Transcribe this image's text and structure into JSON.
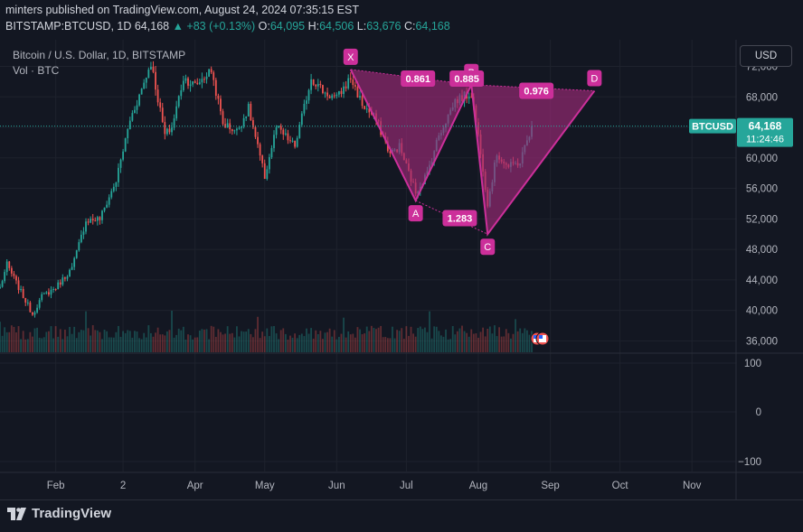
{
  "header": {
    "line1": "minters published on TradingView.com, August 24, 2024 07:35:15 EST",
    "symbol": "BITSTAMP:BTCUSD, 1D",
    "last": "64,168",
    "change": "▲ +83 (+0.13%)",
    "o_label": "O:",
    "o": "64,095",
    "h_label": "H:",
    "h": "64,506",
    "l_label": "L:",
    "l": "63,676",
    "c_label": "C:",
    "c": "64,168"
  },
  "legend": {
    "title": "Bitcoin / U.S. Dollar, 1D, BITSTAMP",
    "volume": "Vol · BTC"
  },
  "currency_button": "USD",
  "footer": {
    "brand": "TradingView"
  },
  "colors": {
    "background": "#131722",
    "up": "#26a69a",
    "down": "#ef5350",
    "pattern": "#cc2f9a",
    "pattern_fill": "#9c2a78",
    "grid": "#1e222d"
  },
  "chart_data": {
    "type": "candlestick",
    "title": "Bitcoin / U.S. Dollar, 1D, BITSTAMP",
    "price_axis": {
      "ticks": [
        36000,
        40000,
        44000,
        48000,
        52000,
        56000,
        60000,
        64000,
        68000,
        72000
      ],
      "tick_labels": [
        "36,000",
        "40,000",
        "44,000",
        "48,000",
        "52,000",
        "56,000",
        "60,000",
        "64,000",
        "68,000",
        "72,000"
      ],
      "ylim": [
        34500,
        75500
      ]
    },
    "indicator_axis": {
      "ticks": [
        100,
        0,
        -100
      ],
      "tick_labels": [
        "100",
        "0",
        "−100"
      ]
    },
    "time_axis": {
      "labels": [
        "Feb",
        "2",
        "Apr",
        "May",
        "Jun",
        "Jul",
        "Aug",
        "Sep",
        "Oct",
        "Nov"
      ],
      "dates": [
        "2024-02-01",
        "2024-03-01",
        "2024-04-01",
        "2024-05-01",
        "2024-06-01",
        "2024-07-01",
        "2024-08-01",
        "2024-09-01",
        "2024-10-01",
        "2024-11-01"
      ],
      "xlim": [
        "2024-01-08",
        "2024-11-20"
      ]
    },
    "last_price": {
      "symbol": "BTCUSD",
      "price": "64,168",
      "countdown": "11:24:46",
      "value": 64168
    },
    "price_path": [
      [
        "2024-01-08",
        43000
      ],
      [
        "2024-01-11",
        46000
      ],
      [
        "2024-01-16",
        43000
      ],
      [
        "2024-01-22",
        39500
      ],
      [
        "2024-01-26",
        41800
      ],
      [
        "2024-02-01",
        43000
      ],
      [
        "2024-02-08",
        45500
      ],
      [
        "2024-02-14",
        51800
      ],
      [
        "2024-02-20",
        52000
      ],
      [
        "2024-02-27",
        57000
      ],
      [
        "2024-03-04",
        65000
      ],
      [
        "2024-03-08",
        68200
      ],
      [
        "2024-03-13",
        72500
      ],
      [
        "2024-03-19",
        63000
      ],
      [
        "2024-03-22",
        64000
      ],
      [
        "2024-03-27",
        70500
      ],
      [
        "2024-04-01",
        69500
      ],
      [
        "2024-04-08",
        71500
      ],
      [
        "2024-04-13",
        64500
      ],
      [
        "2024-04-19",
        63500
      ],
      [
        "2024-04-24",
        66500
      ],
      [
        "2024-05-01",
        57500
      ],
      [
        "2024-05-06",
        64000
      ],
      [
        "2024-05-14",
        61500
      ],
      [
        "2024-05-21",
        70500
      ],
      [
        "2024-05-27",
        68500
      ],
      [
        "2024-06-01",
        67800
      ],
      [
        "2024-06-07",
        70500
      ],
      [
        "2024-06-12",
        67000
      ],
      [
        "2024-06-18",
        65000
      ],
      [
        "2024-06-24",
        60500
      ],
      [
        "2024-06-28",
        61500
      ],
      [
        "2024-07-05",
        55500
      ],
      [
        "2024-07-10",
        58000
      ],
      [
        "2024-07-15",
        63000
      ],
      [
        "2024-07-22",
        67500
      ],
      [
        "2024-07-29",
        68500
      ],
      [
        "2024-08-02",
        61000
      ],
      [
        "2024-08-05",
        54000
      ],
      [
        "2024-08-09",
        60500
      ],
      [
        "2024-08-14",
        58800
      ],
      [
        "2024-08-19",
        59500
      ],
      [
        "2024-08-24",
        64168
      ]
    ],
    "pattern": {
      "points": [
        {
          "label": "X",
          "date": "2024-06-07",
          "price": 71600
        },
        {
          "label": "A",
          "date": "2024-07-05",
          "price": 54400
        },
        {
          "label": "B",
          "date": "2024-07-29",
          "price": 69600
        },
        {
          "label": "C",
          "date": "2024-08-05",
          "price": 50000
        },
        {
          "label": "D",
          "date": "2024-09-20",
          "price": 68800
        }
      ],
      "ratios": [
        {
          "label": "0.861",
          "date": "2024-07-06",
          "price": 70400
        },
        {
          "label": "0.885",
          "date": "2024-07-27",
          "price": 70400
        },
        {
          "label": "0.976",
          "date": "2024-08-26",
          "price": 68800
        },
        {
          "label": "1.283",
          "date": "2024-07-24",
          "price": 52100
        }
      ]
    }
  }
}
